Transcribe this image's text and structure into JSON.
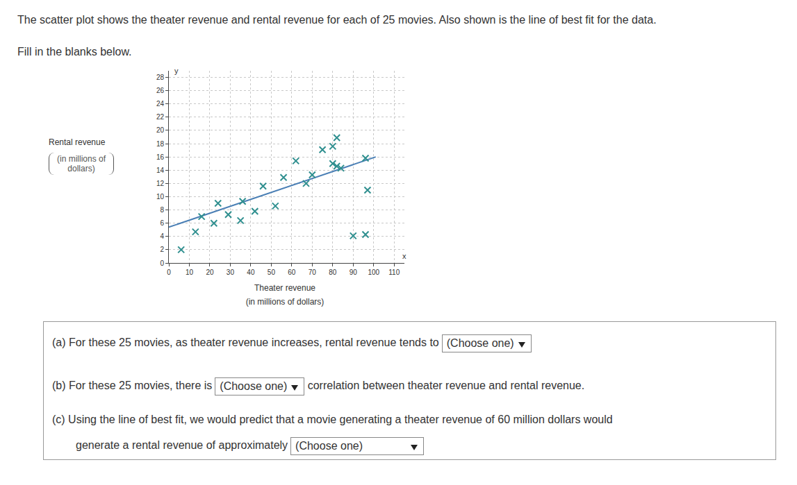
{
  "page": {
    "intro": "The scatter plot shows the theater revenue and rental revenue for each of 25 movies. Also shown is the line of best fit for the data.",
    "instruction": "Fill in the blanks below."
  },
  "chart_data": {
    "type": "scatter",
    "xlabel": "Theater revenue",
    "xlabel_note": "(in millions of dollars)",
    "ylabel": "Rental revenue",
    "ylabel_note": "(in millions of dollars)",
    "x_letter": "x",
    "y_letter": "y",
    "x": [
      6,
      13,
      16,
      22,
      24,
      29,
      35,
      36,
      42,
      52,
      46,
      56,
      62,
      67,
      70,
      75,
      80,
      82,
      80,
      82,
      84,
      96,
      97,
      90,
      96
    ],
    "values": [
      2,
      4.7,
      7,
      6,
      9,
      7.3,
      6.4,
      9.3,
      7.8,
      8.6,
      11.6,
      12.9,
      15.4,
      12,
      13.3,
      17.1,
      17.6,
      18.9,
      15,
      14.6,
      14.3,
      15.8,
      11,
      4.1,
      4.3
    ],
    "color": "#2f8f8f",
    "marker": "x",
    "best_fit": {
      "x": [
        0,
        101
      ],
      "values": [
        5.4,
        16.0
      ],
      "color": "#4a7fb5"
    },
    "xlim": [
      0,
      115
    ],
    "ylim": [
      0,
      29
    ],
    "xticks": [
      0,
      10,
      20,
      30,
      40,
      50,
      60,
      70,
      80,
      90,
      100,
      110
    ],
    "yticks": [
      0,
      2,
      4,
      6,
      8,
      10,
      12,
      14,
      16,
      18,
      20,
      22,
      24,
      26,
      28
    ],
    "grid": true
  },
  "questions": [
    {
      "label": "(a)",
      "text": "For these 25 movies, as theater revenue increases, rental revenue tends to",
      "choice": "(Choose one)"
    },
    {
      "label": "(b)",
      "text": "For these 25 movies, there is",
      "choice": "(Choose one)",
      "after": "correlation between theater revenue and rental revenue."
    },
    {
      "label": "(c)",
      "text": "Using the line of best fit, we would predict that a movie generating a theater revenue of 60 million dollars would",
      "text2": "generate a rental revenue of approximately",
      "choice": "(Choose one)"
    }
  ]
}
